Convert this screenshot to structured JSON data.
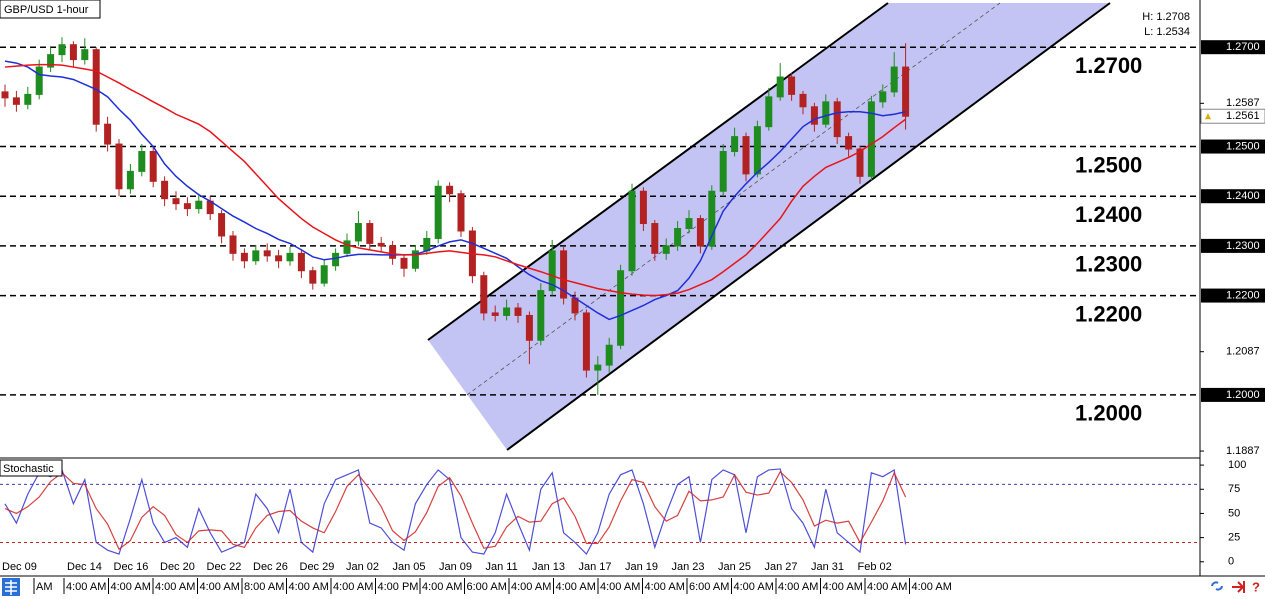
{
  "chart_data": {
    "type": "candlestick",
    "title": "GBP/USD 1-hour",
    "high_label": "H: 1.2708",
    "low_label": "L: 1.2534",
    "up_color": "#1e8c1e",
    "down_color": "#b22222",
    "open": [
      1.261,
      1.2598,
      1.2585,
      1.2605,
      1.266,
      1.2685,
      1.2705,
      1.2675,
      1.2695,
      1.2545,
      1.2505,
      1.2415,
      1.245,
      1.249,
      1.243,
      1.2395,
      1.2385,
      1.2375,
      1.239,
      1.2365,
      1.232,
      1.2285,
      1.227,
      1.229,
      1.228,
      1.227,
      1.2285,
      1.225,
      1.2225,
      1.226,
      1.2285,
      1.231,
      1.2345,
      1.2305,
      1.23,
      1.2275,
      1.2255,
      1.229,
      1.2315,
      1.242,
      1.2405,
      1.233,
      1.224,
      1.2165,
      1.216,
      1.2175,
      1.216,
      1.211,
      1.221,
      1.229,
      1.2195,
      1.2165,
      1.205,
      1.206,
      1.21,
      1.225,
      1.241,
      1.2345,
      1.2285,
      1.23,
      1.2335,
      1.2355,
      1.23,
      1.241,
      1.249,
      1.252,
      1.2445,
      1.254,
      1.26,
      1.264,
      1.2605,
      1.258,
      1.2545,
      1.259,
      1.252,
      1.2495,
      1.244,
      1.259,
      1.261,
      1.266
    ],
    "high": [
      1.2625,
      1.2612,
      1.262,
      1.2675,
      1.27,
      1.272,
      1.2712,
      1.2718,
      1.27,
      1.256,
      1.2515,
      1.2465,
      1.2505,
      1.2498,
      1.244,
      1.241,
      1.2398,
      1.2405,
      1.24,
      1.2372,
      1.233,
      1.2295,
      1.2302,
      1.2305,
      1.2292,
      1.2298,
      1.2292,
      1.2258,
      1.2272,
      1.2295,
      1.2325,
      1.237,
      1.2352,
      1.2318,
      1.231,
      1.2282,
      1.2302,
      1.233,
      1.2432,
      1.2428,
      1.2412,
      1.2338,
      1.2248,
      1.218,
      1.2192,
      1.2185,
      1.2168,
      1.2225,
      1.2312,
      1.2298,
      1.2208,
      1.2172,
      1.2078,
      1.2115,
      1.2262,
      1.2425,
      1.2418,
      1.2352,
      1.2315,
      1.235,
      1.2372,
      1.2362,
      1.2422,
      1.2505,
      1.2538,
      1.2528,
      1.2552,
      1.2618,
      1.2668,
      1.2648,
      1.2612,
      1.2588,
      1.2605,
      1.2598,
      1.2528,
      1.2502,
      1.2602,
      1.2625,
      1.269,
      1.2708
    ],
    "low": [
      1.258,
      1.257,
      1.2575,
      1.2595,
      1.265,
      1.267,
      1.266,
      1.2665,
      1.253,
      1.249,
      1.24,
      1.2405,
      1.244,
      1.2418,
      1.238,
      1.2372,
      1.236,
      1.2365,
      1.2352,
      1.2305,
      1.227,
      1.2255,
      1.2262,
      1.2268,
      1.2255,
      1.226,
      1.2235,
      1.2212,
      1.2218,
      1.225,
      1.2278,
      1.23,
      1.2292,
      1.2288,
      1.2262,
      1.2238,
      1.2248,
      1.2282,
      1.2305,
      1.2388,
      1.2318,
      1.2225,
      1.215,
      1.2148,
      1.215,
      1.2145,
      1.2062,
      1.21,
      1.22,
      1.2182,
      1.215,
      1.2035,
      1.2,
      1.2045,
      1.2092,
      1.224,
      1.233,
      1.227,
      1.2272,
      1.229,
      1.2325,
      1.2285,
      1.2292,
      1.24,
      1.248,
      1.243,
      1.2438,
      1.2532,
      1.2592,
      1.2592,
      1.2565,
      1.253,
      1.2538,
      1.2505,
      1.248,
      1.2425,
      1.2432,
      1.2578,
      1.26,
      1.2534
    ],
    "close": [
      1.2598,
      1.2585,
      1.2605,
      1.266,
      1.2685,
      1.2705,
      1.2675,
      1.2695,
      1.2545,
      1.2505,
      1.2415,
      1.245,
      1.249,
      1.243,
      1.2395,
      1.2385,
      1.2375,
      1.239,
      1.2365,
      1.232,
      1.2285,
      1.227,
      1.229,
      1.228,
      1.227,
      1.2285,
      1.225,
      1.2225,
      1.226,
      1.2285,
      1.231,
      1.2345,
      1.2305,
      1.23,
      1.2275,
      1.2255,
      1.229,
      1.2315,
      1.242,
      1.2405,
      1.233,
      1.224,
      1.2165,
      1.216,
      1.2175,
      1.216,
      1.211,
      1.221,
      1.229,
      1.2195,
      1.2165,
      1.205,
      1.206,
      1.21,
      1.225,
      1.241,
      1.2345,
      1.2285,
      1.23,
      1.2335,
      1.2355,
      1.23,
      1.241,
      1.249,
      1.252,
      1.2445,
      1.254,
      1.26,
      1.264,
      1.2605,
      1.258,
      1.2545,
      1.259,
      1.252,
      1.2495,
      1.244,
      1.259,
      1.261,
      1.266,
      1.2561
    ],
    "moving_averages": [
      {
        "color": "#1f2fd8",
        "values": [
          1.2672,
          1.2668,
          1.266,
          1.2645,
          1.2642,
          1.264,
          1.2635,
          1.2625,
          1.2615,
          1.26,
          1.2575,
          1.2553,
          1.2525,
          1.25,
          1.2465,
          1.244,
          1.242,
          1.2403,
          1.239,
          1.2375,
          1.236,
          1.2348,
          1.2335,
          1.2325,
          1.2313,
          1.2305,
          1.2292,
          1.2278,
          1.2272,
          1.2275,
          1.228,
          1.2283,
          1.2283,
          1.2282,
          1.2282,
          1.2282,
          1.2283,
          1.229,
          1.23,
          1.2308,
          1.2312,
          1.2305,
          1.2295,
          1.2285,
          1.2275,
          1.2258,
          1.2242,
          1.223,
          1.2222,
          1.221,
          1.2195,
          1.218,
          1.2165,
          1.2152,
          1.216,
          1.217,
          1.218,
          1.2192,
          1.22,
          1.221,
          1.2235,
          1.227,
          1.232,
          1.237,
          1.24,
          1.2425,
          1.2448,
          1.2468,
          1.249,
          1.2515,
          1.254,
          1.2555,
          1.2562,
          1.2568,
          1.257,
          1.257,
          1.2567,
          1.2562,
          1.2565,
          1.257
        ]
      },
      {
        "color": "#e8141a",
        "values": [
          1.266,
          1.2662,
          1.2664,
          1.2665,
          1.2665,
          1.2664,
          1.266,
          1.2656,
          1.2652,
          1.264,
          1.2628,
          1.2615,
          1.2603,
          1.259,
          1.2578,
          1.2565,
          1.2555,
          1.2545,
          1.253,
          1.251,
          1.249,
          1.247,
          1.2445,
          1.242,
          1.2395,
          1.2375,
          1.2355,
          1.2338,
          1.2325,
          1.2312,
          1.2302,
          1.2296,
          1.2292,
          1.2288,
          1.2284,
          1.2282,
          1.2282,
          1.2285,
          1.2288,
          1.229,
          1.2287,
          1.2284,
          1.2282,
          1.2278,
          1.227,
          1.2262,
          1.2255,
          1.2248,
          1.224,
          1.2232,
          1.2226,
          1.222,
          1.2214,
          1.221,
          1.2206,
          1.2203,
          1.2201,
          1.22,
          1.2202,
          1.2205,
          1.2212,
          1.2222,
          1.2232,
          1.2248,
          1.2265,
          1.2282,
          1.2305,
          1.233,
          1.2355,
          1.239,
          1.242,
          1.244,
          1.2458,
          1.2468,
          1.2478,
          1.249,
          1.2505,
          1.252,
          1.2538,
          1.2555
        ]
      }
    ],
    "ylim": [
      1.1873,
      1.2795
    ],
    "yticks": [
      {
        "value": 1.1887,
        "label": "1.1887"
      },
      {
        "value": 1.2087,
        "label": "1.2087"
      },
      {
        "value": 1.2587,
        "label": "1.2587"
      }
    ],
    "levels": [
      {
        "value": 1.27,
        "label": "1.2700"
      },
      {
        "value": 1.25,
        "label": "1.2500"
      },
      {
        "value": 1.24,
        "label": "1.2400"
      },
      {
        "value": 1.23,
        "label": "1.2300"
      },
      {
        "value": 1.22,
        "label": "1.2200"
      },
      {
        "value": 1.2,
        "label": "1.2000"
      }
    ],
    "current_price": {
      "value": 1.2561,
      "label": "1.2561"
    },
    "dates": [
      "Dec 09",
      "Dec 14",
      "Dec 16",
      "Dec 20",
      "Dec 22",
      "Dec 26",
      "Dec 29",
      "Jan 02",
      "Jan 05",
      "Jan 09",
      "Jan 11",
      "Jan 13",
      "Jan 17",
      "Jan 19",
      "Jan 23",
      "Jan 25",
      "Jan 27",
      "Jan 31",
      "Feb 02"
    ],
    "times": [
      "AM",
      "4:00 AM",
      "4:00 AM",
      "4:00 AM",
      "4:00 AM",
      "8:00 AM",
      "4:00 AM",
      "4:00 AM",
      "4:00 PM",
      "4:00 AM",
      "6:00 AM",
      "4:00 AM",
      "4:00 AM",
      "4:00 AM",
      "4:00 AM",
      "6:00 AM",
      "4:00 AM",
      "4:00 AM",
      "4:00 AM",
      "4:00 AM",
      "4:00 AM"
    ],
    "stochastic": {
      "title": "Stochastic",
      "ylim": [
        -14.7,
        106.3
      ],
      "yticks": [
        100,
        75,
        50,
        25,
        0
      ],
      "levels": [
        {
          "value": 80,
          "color": "#3c3cc8"
        },
        {
          "value": 20,
          "color": "#d02020"
        }
      ],
      "series": [
        {
          "color": "#3030d0",
          "values": [
            60,
            40,
            70,
            92,
            88,
            95,
            60,
            85,
            20,
            12,
            8,
            45,
            85,
            40,
            20,
            25,
            15,
            55,
            30,
            10,
            15,
            20,
            70,
            55,
            30,
            75,
            20,
            10,
            60,
            85,
            90,
            95,
            40,
            35,
            20,
            12,
            60,
            80,
            95,
            85,
            25,
            10,
            8,
            30,
            70,
            40,
            12,
            75,
            92,
            30,
            20,
            8,
            30,
            70,
            90,
            95,
            60,
            15,
            50,
            80,
            88,
            20,
            85,
            95,
            90,
            30,
            88,
            95,
            96,
            55,
            40,
            15,
            75,
            30,
            20,
            10,
            92,
            88,
            95,
            18
          ]
        },
        {
          "color": "#d02020",
          "values": [
            55,
            50,
            57,
            67,
            83,
            92,
            81,
            80,
            55,
            39,
            13,
            22,
            46,
            57,
            48,
            28,
            20,
            32,
            33,
            32,
            18,
            15,
            35,
            48,
            52,
            53,
            42,
            35,
            30,
            52,
            78,
            90,
            75,
            57,
            32,
            22,
            31,
            51,
            78,
            87,
            68,
            40,
            14,
            16,
            36,
            47,
            41,
            42,
            60,
            66,
            47,
            19,
            19,
            36,
            63,
            85,
            82,
            57,
            42,
            48,
            73,
            63,
            64,
            67,
            90,
            72,
            69,
            71,
            93,
            82,
            64,
            37,
            43,
            40,
            42,
            20,
            41,
            63,
            92,
            67
          ]
        }
      ]
    }
  }
}
